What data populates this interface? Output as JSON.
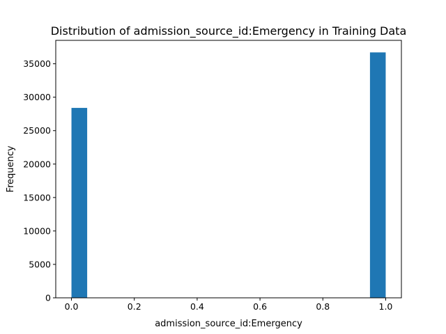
{
  "chart_data": {
    "type": "bar",
    "title": "Distribution of admission_source_id:Emergency in Training Data",
    "xlabel": "admission_source_id:Emergency",
    "ylabel": "Frequency",
    "xlim": [
      -0.05,
      1.05
    ],
    "ylim": [
      0,
      38500
    ],
    "xticks": [
      0.0,
      0.2,
      0.4,
      0.6,
      0.8,
      1.0
    ],
    "xtick_labels": [
      "0.0",
      "0.2",
      "0.4",
      "0.6",
      "0.8",
      "1.0"
    ],
    "yticks": [
      0,
      5000,
      10000,
      15000,
      20000,
      25000,
      30000,
      35000
    ],
    "ytick_labels": [
      "0",
      "5000",
      "10000",
      "15000",
      "20000",
      "25000",
      "30000",
      "35000"
    ],
    "bins": [
      {
        "x0": 0.0,
        "x1": 0.05,
        "value": 28400
      },
      {
        "x0": 0.95,
        "x1": 1.0,
        "value": 36700
      }
    ],
    "bar_color": "#1f77b4",
    "grid": false,
    "legend": false
  }
}
